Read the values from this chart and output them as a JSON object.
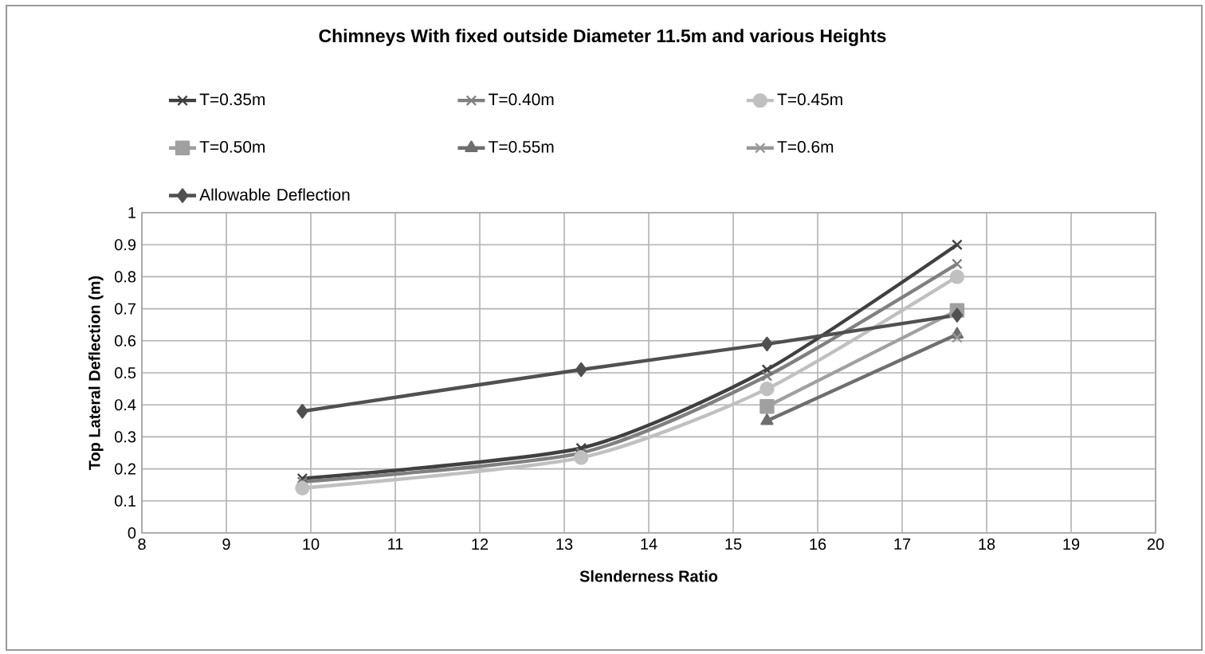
{
  "chart_data": {
    "type": "line",
    "title": "Chimneys With fixed outside Diameter 11.5m and various Heights",
    "xlabel": "Slenderness Ratio",
    "ylabel": "Top Lateral  Deflection (m)",
    "x": [
      9.9,
      13.2,
      15.4,
      17.65
    ],
    "series": [
      {
        "name": "T=0.35m",
        "color": "#404040",
        "marker": "cross",
        "values": [
          0.17,
          0.265,
          0.51,
          0.9
        ]
      },
      {
        "name": "T=0.40m",
        "color": "#808080",
        "marker": "cross",
        "values": [
          0.16,
          0.25,
          0.49,
          0.84
        ]
      },
      {
        "name": "T=0.45m",
        "color": "#c0c0c0",
        "marker": "circle",
        "values": [
          0.14,
          0.235,
          0.45,
          0.8
        ]
      },
      {
        "name": "T=0.50m",
        "color": "#a0a0a0",
        "marker": "square",
        "values": [
          null,
          null,
          0.395,
          0.695
        ]
      },
      {
        "name": "T=0.55m",
        "color": "#6e6e6e",
        "marker": "triangle",
        "values": [
          null,
          null,
          0.35,
          0.62
        ]
      },
      {
        "name": "T=0.6m",
        "color": "#999999",
        "marker": "cross",
        "values": [
          null,
          null,
          null,
          0.61
        ]
      },
      {
        "name": "Allowable Deflection",
        "color": "#505050",
        "marker": "diamond",
        "values": [
          0.38,
          0.51,
          0.59,
          0.68
        ]
      }
    ],
    "xlim": [
      8,
      20
    ],
    "xticks": [
      8,
      9,
      10,
      11,
      12,
      13,
      14,
      15,
      16,
      17,
      18,
      19,
      20
    ],
    "ylim": [
      0,
      1
    ],
    "yticks": [
      0,
      0.1,
      0.2,
      0.3,
      0.4,
      0.5,
      0.6,
      0.7,
      0.8,
      0.9,
      1
    ],
    "grid": true,
    "legend": "top",
    "line_style": "solid"
  }
}
